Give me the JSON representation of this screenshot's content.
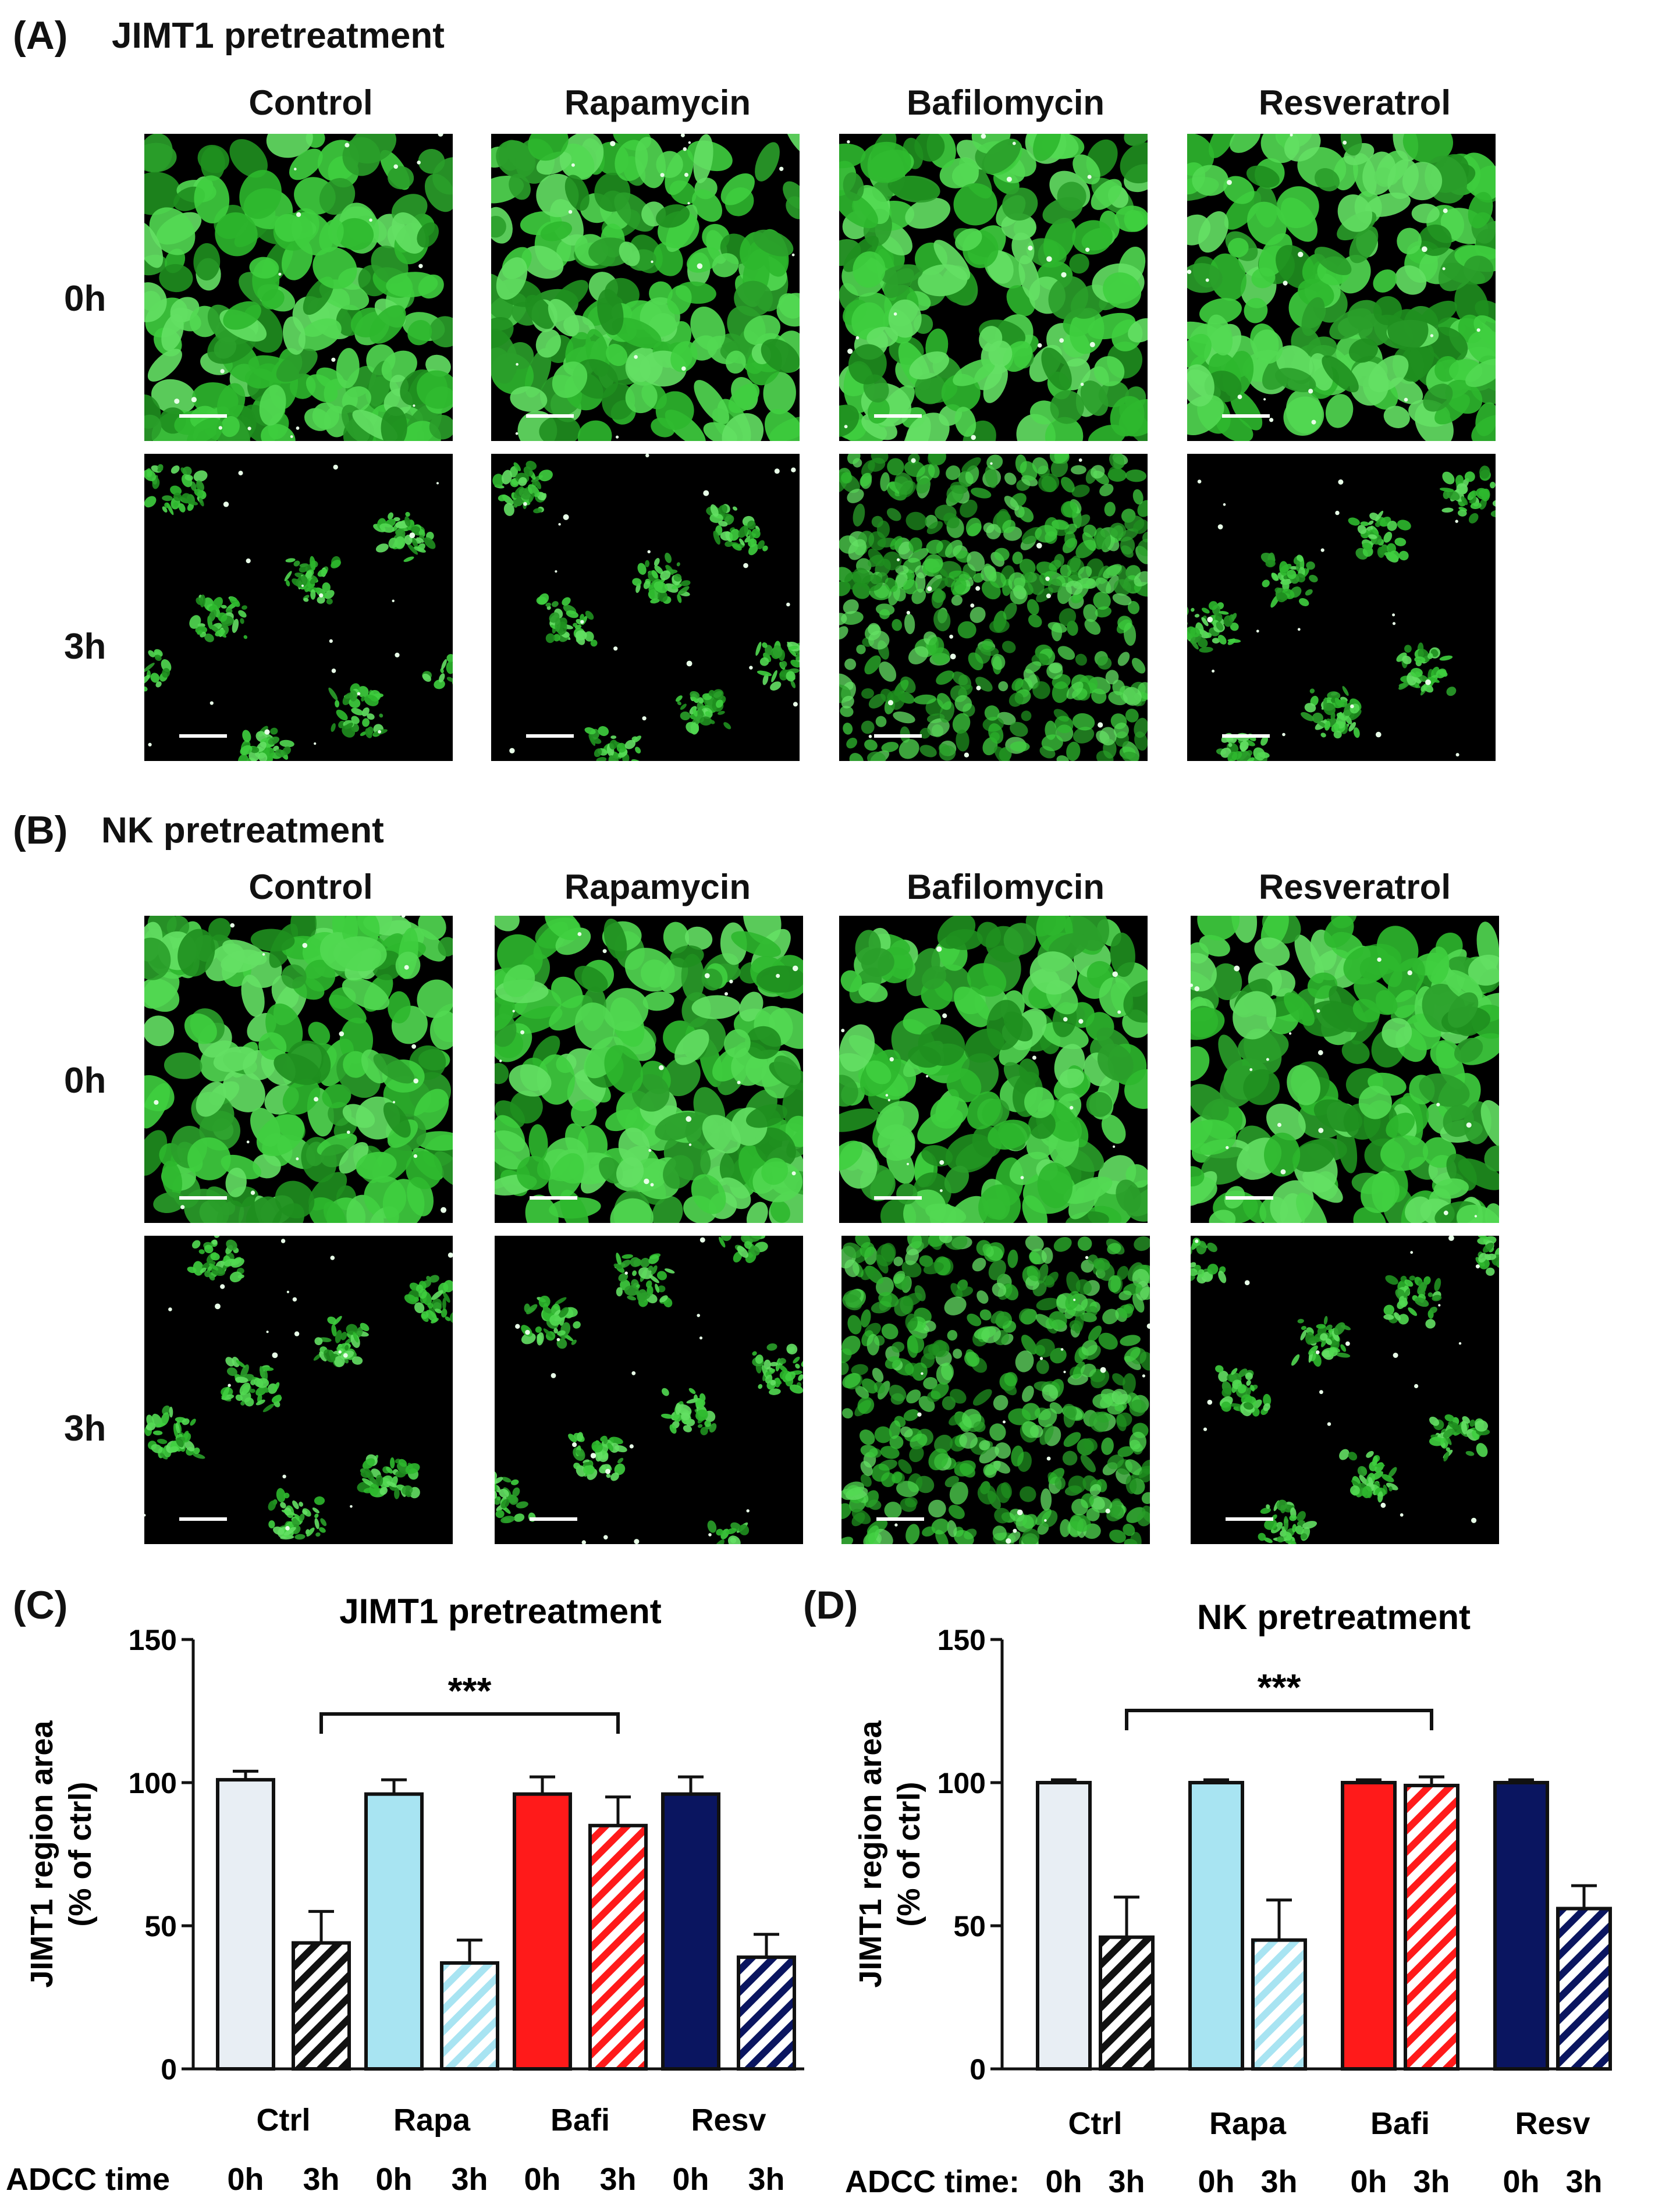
{
  "panel_a": {
    "letter": "(A)",
    "title": "JIMT1 pretreatment",
    "columns": [
      "Control",
      "Rapamycin",
      "Bafilomycin",
      "Resveratrol"
    ],
    "rows": [
      "0h",
      "3h"
    ]
  },
  "panel_b": {
    "letter": "(B)",
    "title": "NK pretreatment",
    "columns": [
      "Control",
      "Rapamycin",
      "Bafilomycin",
      "Resveratrol"
    ],
    "rows": [
      "0h",
      "3h"
    ]
  },
  "panel_c": {
    "letter": "(C)"
  },
  "panel_d": {
    "letter": "(D)"
  },
  "colors": {
    "ctrl": "#e8eef4",
    "rapa": "#a8e4f2",
    "bafi": "#ff1a1a",
    "resv": "#0a1560",
    "cell_green": "#3fcf3f"
  },
  "chart_data": [
    {
      "type": "bar",
      "title": "JIMT1 pretreatment",
      "ylabel": "JIMT1 region area\n(% of ctrl)",
      "ylim": [
        0,
        150
      ],
      "yticks": [
        "0",
        "50",
        "100",
        "150"
      ],
      "groups": [
        "Ctrl",
        "Rapa",
        "Bafi",
        "Resv"
      ],
      "row_label": "ADCC time",
      "timepoints": [
        "0h",
        "3h",
        "0h",
        "3h",
        "0h",
        "3h",
        "0h",
        "3h"
      ],
      "values": [
        101,
        44,
        96,
        37,
        96,
        85,
        96,
        39
      ],
      "errors": [
        3,
        11,
        5,
        8,
        6,
        10,
        6,
        8
      ],
      "bar_colors": [
        "ctrl",
        "ctrl",
        "rapa",
        "rapa",
        "bafi",
        "bafi",
        "resv",
        "resv"
      ],
      "hatched": [
        false,
        true,
        false,
        true,
        false,
        true,
        false,
        true
      ],
      "significance": {
        "from": 1,
        "to": 5,
        "label": "***"
      }
    },
    {
      "type": "bar",
      "title": "NK pretreatment",
      "ylabel": "JIMT1 region area\n(% of ctrl)",
      "ylim": [
        0,
        150
      ],
      "yticks": [
        "0",
        "50",
        "100",
        "150"
      ],
      "groups": [
        "Ctrl",
        "Rapa",
        "Bafi",
        "Resv"
      ],
      "row_label": "ADCC time:",
      "timepoints": [
        "0h",
        "3h",
        "0h",
        "3h",
        "0h",
        "3h",
        "0h",
        "3h"
      ],
      "values": [
        100,
        46,
        100,
        45,
        100,
        99,
        100,
        56
      ],
      "errors": [
        1,
        14,
        1,
        14,
        1,
        3,
        1,
        8
      ],
      "bar_colors": [
        "ctrl",
        "ctrl",
        "rapa",
        "rapa",
        "bafi",
        "bafi",
        "resv",
        "resv"
      ],
      "hatched": [
        false,
        true,
        false,
        true,
        false,
        true,
        false,
        true
      ],
      "significance": {
        "from": 1,
        "to": 5,
        "label": "***"
      }
    }
  ]
}
